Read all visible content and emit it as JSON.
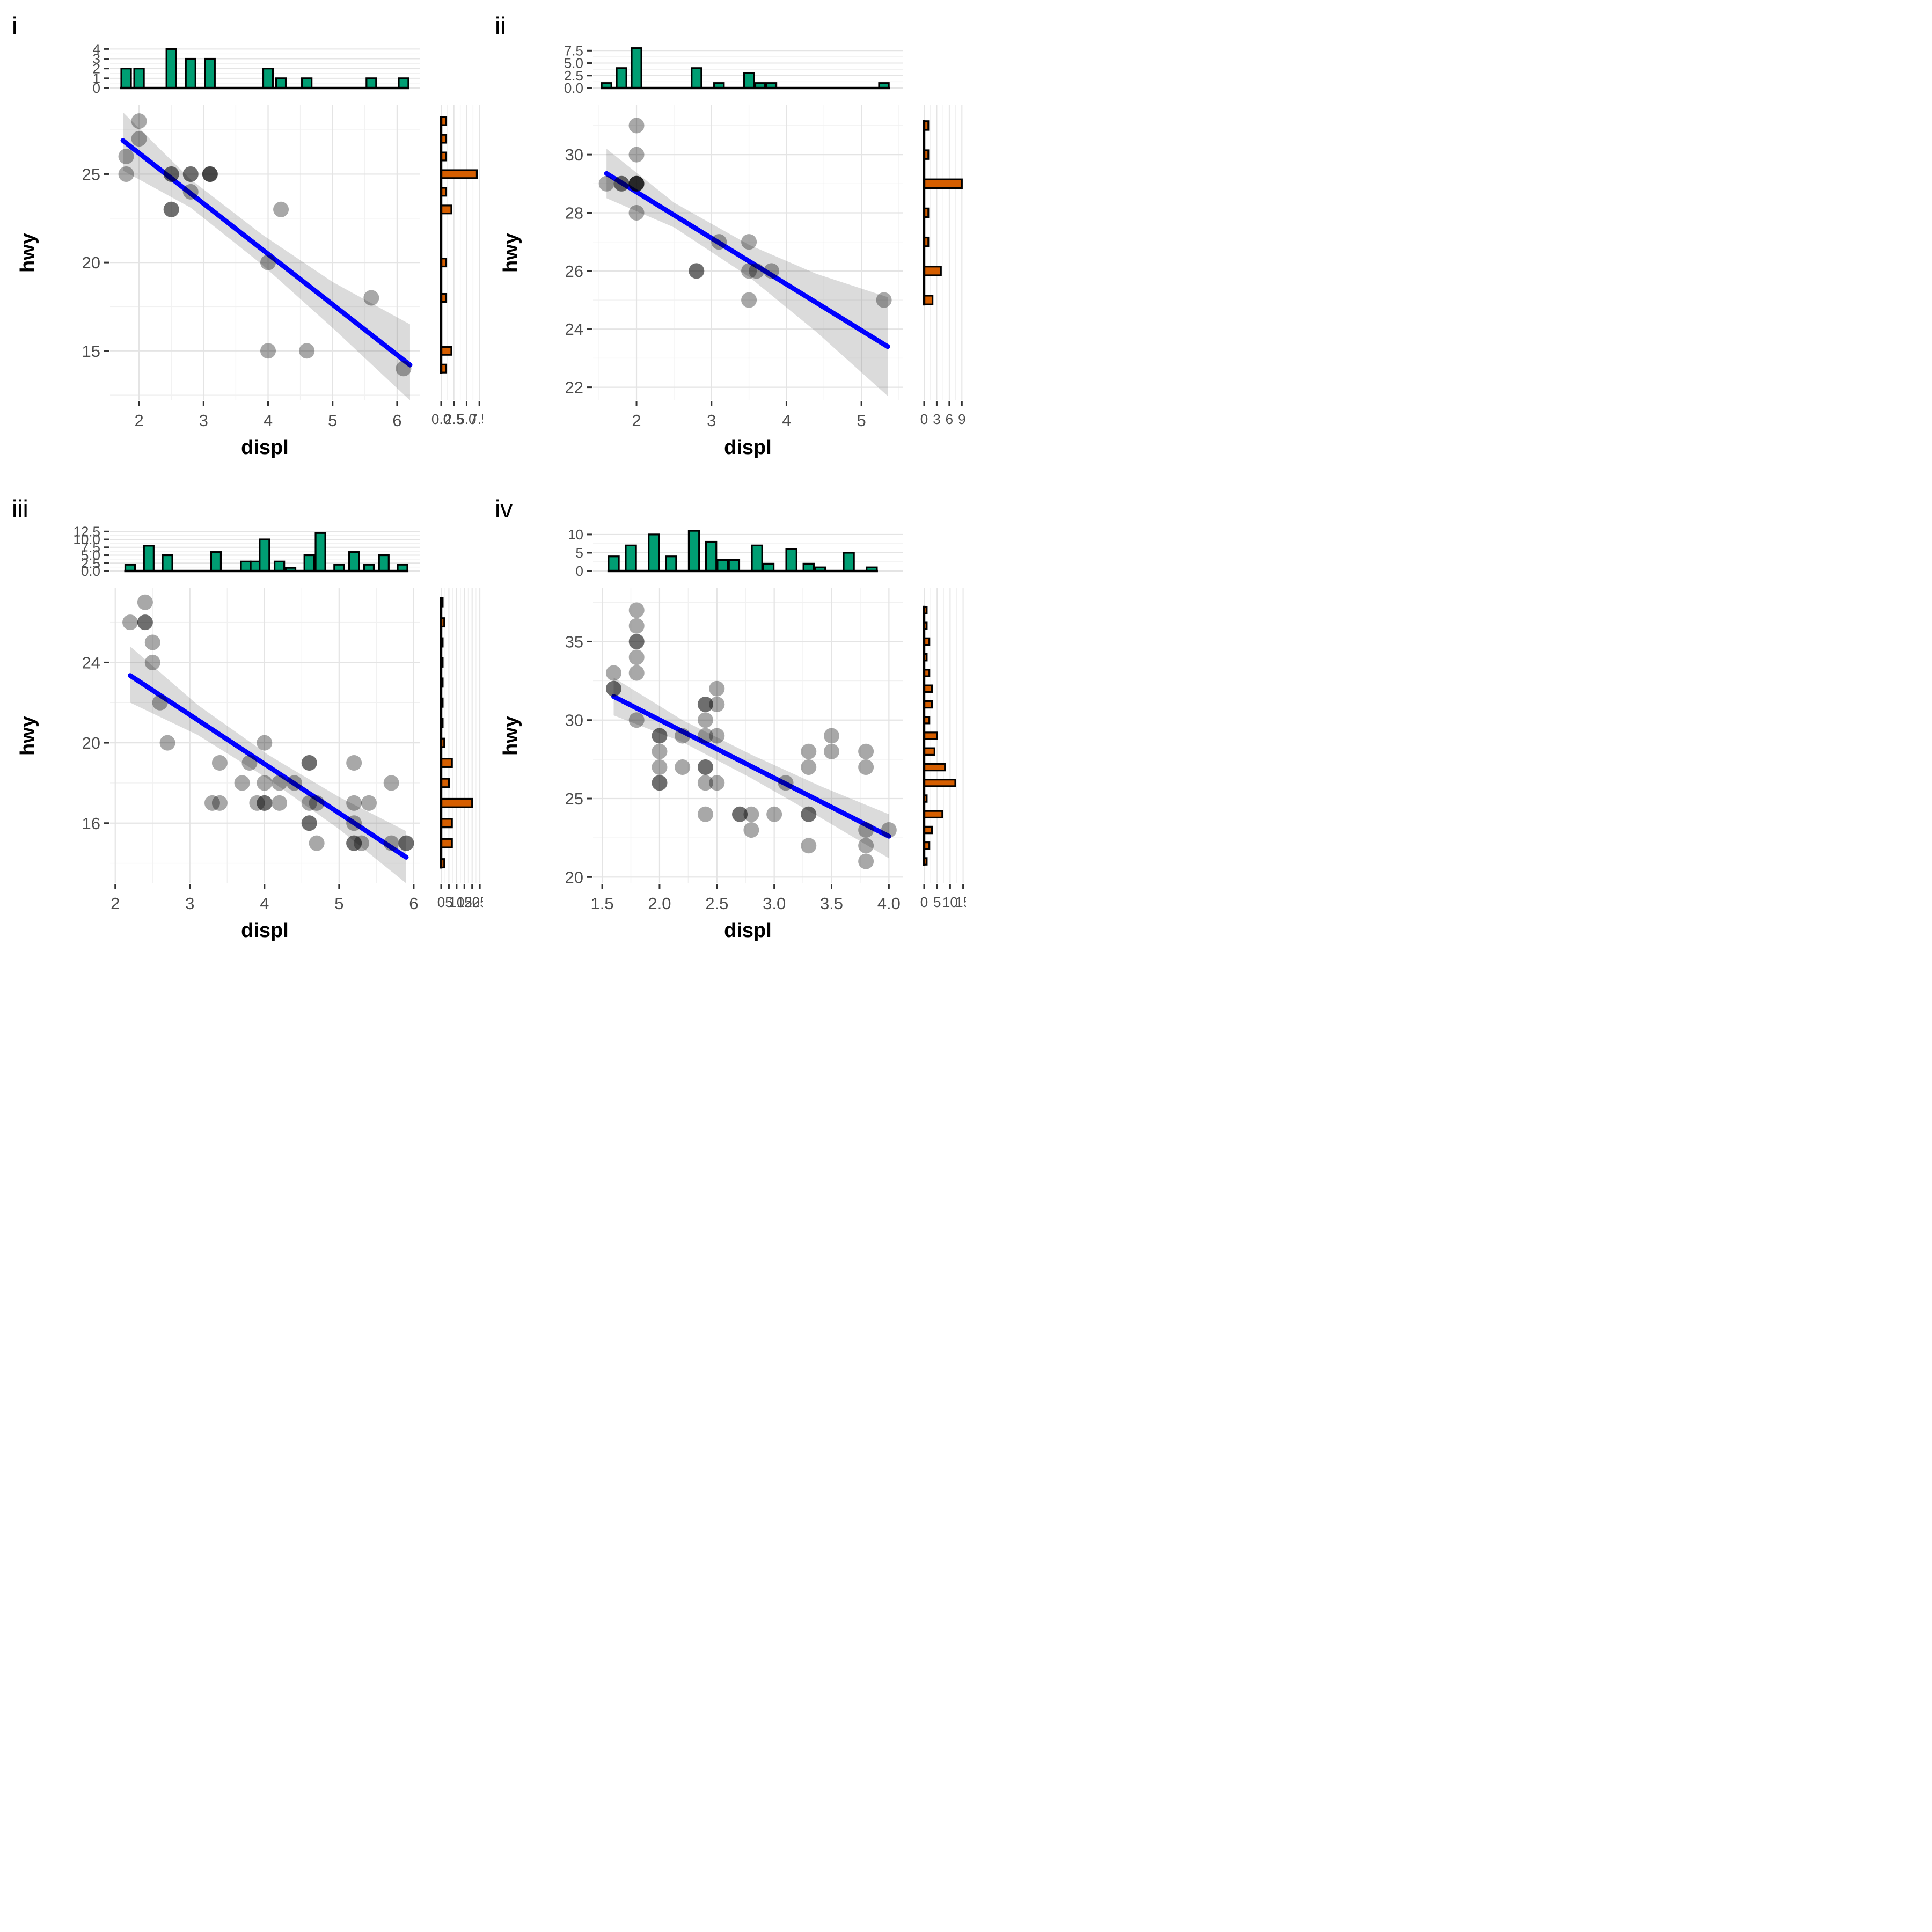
{
  "figure": {
    "type": "scatter-with-marginal-histograms",
    "panel_labels": [
      "i",
      "ii",
      "iii",
      "iv"
    ],
    "x_axis_title": "displ",
    "y_axis_title": "hwy"
  },
  "colors": {
    "top_hist_fill": "#009E73",
    "right_hist_fill": "#D55E00",
    "hist_stroke": "#000000",
    "fit_line": "#0000FF",
    "ci_band": "rgba(110,110,110,0.25)",
    "point": "rgba(0,0,0,0.34)",
    "grid_major": "#E4E4E4",
    "grid_minor": "#F1F1F1",
    "tick_mark": "#333333",
    "tick_label": "#4D4D4D",
    "axis_title": "#000000",
    "panel_letter": "#000000"
  },
  "chart_data": [
    {
      "type": "scatter",
      "label": "i",
      "xlabel": "displ",
      "ylabel": "hwy",
      "x_range": [
        1.55,
        6.35
      ],
      "y_range": [
        12.2,
        28.9
      ],
      "x_ticks": [
        2,
        3,
        4,
        5,
        6
      ],
      "x_tick_labels": [
        "2",
        "3",
        "4",
        "5",
        "6"
      ],
      "y_ticks": [
        15,
        20,
        25
      ],
      "y_tick_labels": [
        "15",
        "20",
        "25"
      ],
      "points": [
        [
          2.0,
          28
        ],
        [
          2.0,
          27
        ],
        [
          1.8,
          26
        ],
        [
          1.8,
          25
        ],
        [
          2.5,
          25
        ],
        [
          2.5,
          25
        ],
        [
          2.8,
          25
        ],
        [
          2.8,
          25
        ],
        [
          3.1,
          25
        ],
        [
          3.1,
          25
        ],
        [
          3.1,
          25
        ],
        [
          2.8,
          24
        ],
        [
          2.5,
          23
        ],
        [
          2.5,
          23
        ],
        [
          4.2,
          23
        ],
        [
          4.0,
          20
        ],
        [
          5.6,
          18
        ],
        [
          4.0,
          15
        ],
        [
          4.6,
          15
        ],
        [
          6.1,
          14
        ]
      ],
      "fit": {
        "x1": 1.75,
        "y1": 26.9,
        "x2": 6.2,
        "y2": 14.2,
        "band": [
          [
            1.75,
            25.2,
            28.5
          ],
          [
            2.8,
            23.1,
            24.7
          ],
          [
            3.9,
            19.9,
            21.6
          ],
          [
            5.0,
            16.3,
            18.9
          ],
          [
            6.2,
            11.9,
            16.5
          ]
        ]
      },
      "top_hist": {
        "axis_ticks": [
          0,
          1,
          2,
          3,
          4
        ],
        "axis_labels": [
          "0",
          "1",
          "2",
          "3",
          "4"
        ],
        "axis_max": 4.35,
        "bin_width": 0.15,
        "bars": [
          [
            1.8,
            2
          ],
          [
            2.0,
            2
          ],
          [
            2.5,
            4
          ],
          [
            2.8,
            3
          ],
          [
            3.1,
            3
          ],
          [
            4.0,
            2
          ],
          [
            4.2,
            1
          ],
          [
            4.6,
            1
          ],
          [
            5.6,
            1
          ],
          [
            6.1,
            1
          ]
        ]
      },
      "right_hist": {
        "axis_ticks": [
          0,
          2.5,
          5,
          7.5
        ],
        "axis_labels": [
          "0.0",
          "2.5",
          "5.0",
          "7.5"
        ],
        "axis_max": 7.9,
        "bin_width": 0.45,
        "bars": [
          [
            28,
            1
          ],
          [
            27,
            1
          ],
          [
            26,
            1
          ],
          [
            25,
            7
          ],
          [
            24,
            1
          ],
          [
            23,
            2
          ],
          [
            20,
            1
          ],
          [
            18,
            1
          ],
          [
            15,
            2
          ],
          [
            14,
            1
          ]
        ]
      }
    },
    {
      "type": "scatter",
      "label": "ii",
      "xlabel": "displ",
      "ylabel": "hwy",
      "x_range": [
        1.42,
        5.55
      ],
      "y_range": [
        21.55,
        31.7
      ],
      "x_ticks": [
        2,
        3,
        4,
        5
      ],
      "x_tick_labels": [
        "2",
        "3",
        "4",
        "5"
      ],
      "y_ticks": [
        22,
        24,
        26,
        28,
        30
      ],
      "y_tick_labels": [
        "22",
        "24",
        "26",
        "28",
        "30"
      ],
      "points": [
        [
          1.6,
          29
        ],
        [
          1.8,
          29
        ],
        [
          1.8,
          29
        ],
        [
          2.0,
          31
        ],
        [
          2.0,
          30
        ],
        [
          2.0,
          29
        ],
        [
          2.0,
          29
        ],
        [
          2.0,
          29
        ],
        [
          2.0,
          29
        ],
        [
          2.0,
          28
        ],
        [
          2.8,
          26
        ],
        [
          2.8,
          26
        ],
        [
          3.1,
          27
        ],
        [
          3.5,
          27
        ],
        [
          3.5,
          26
        ],
        [
          3.6,
          26
        ],
        [
          3.8,
          26
        ],
        [
          3.5,
          25
        ],
        [
          5.3,
          25
        ]
      ],
      "fit": {
        "x1": 1.6,
        "y1": 29.35,
        "x2": 5.35,
        "y2": 23.4,
        "band": [
          [
            1.6,
            28.5,
            30.2
          ],
          [
            2.5,
            27.5,
            28.35
          ],
          [
            3.5,
            25.8,
            26.9
          ],
          [
            4.4,
            23.9,
            25.9
          ],
          [
            5.35,
            21.7,
            25.1
          ]
        ]
      },
      "top_hist": {
        "axis_ticks": [
          0,
          2.5,
          5,
          7.5
        ],
        "axis_labels": [
          "0.0",
          "2.5",
          "5.0",
          "7.5"
        ],
        "axis_max": 8.5,
        "bin_width": 0.13,
        "bars": [
          [
            1.6,
            1
          ],
          [
            1.8,
            4
          ],
          [
            2.0,
            8
          ],
          [
            2.8,
            4
          ],
          [
            3.1,
            1
          ],
          [
            3.5,
            3
          ],
          [
            3.65,
            1
          ],
          [
            3.8,
            1
          ],
          [
            5.3,
            1
          ]
        ]
      },
      "right_hist": {
        "axis_ticks": [
          0,
          3,
          6,
          9
        ],
        "axis_labels": [
          "0",
          "3",
          "6",
          "9"
        ],
        "axis_max": 9.6,
        "bin_width": 0.3,
        "bars": [
          [
            31,
            1
          ],
          [
            30,
            1
          ],
          [
            29,
            9
          ],
          [
            28,
            1
          ],
          [
            27,
            1
          ],
          [
            26,
            4
          ],
          [
            25,
            2
          ]
        ]
      }
    },
    {
      "type": "scatter",
      "label": "iii",
      "xlabel": "displ",
      "ylabel": "hwy",
      "x_range": [
        1.93,
        6.08
      ],
      "y_range": [
        13.0,
        27.7
      ],
      "x_ticks": [
        2,
        3,
        4,
        5,
        6
      ],
      "x_tick_labels": [
        "2",
        "3",
        "4",
        "5",
        "6"
      ],
      "y_ticks": [
        16,
        20,
        24
      ],
      "y_tick_labels": [
        "16",
        "20",
        "24"
      ],
      "points": [
        [
          2.2,
          26
        ],
        [
          2.4,
          27
        ],
        [
          2.4,
          26
        ],
        [
          2.4,
          26
        ],
        [
          2.5,
          25
        ],
        [
          2.5,
          24
        ],
        [
          2.6,
          22
        ],
        [
          2.7,
          20
        ],
        [
          4.0,
          20
        ],
        [
          3.4,
          19
        ],
        [
          3.8,
          19
        ],
        [
          4.6,
          19
        ],
        [
          4.6,
          19
        ],
        [
          5.2,
          19
        ],
        [
          3.7,
          18
        ],
        [
          4.0,
          18
        ],
        [
          4.2,
          18
        ],
        [
          4.4,
          18
        ],
        [
          5.7,
          18
        ],
        [
          3.3,
          17
        ],
        [
          3.4,
          17
        ],
        [
          3.9,
          17
        ],
        [
          4.0,
          17
        ],
        [
          4.0,
          17
        ],
        [
          4.2,
          17
        ],
        [
          4.6,
          17
        ],
        [
          4.7,
          17
        ],
        [
          5.2,
          17
        ],
        [
          5.4,
          17
        ],
        [
          4.6,
          16
        ],
        [
          4.6,
          16
        ],
        [
          5.2,
          16
        ],
        [
          4.7,
          15
        ],
        [
          5.2,
          15
        ],
        [
          5.2,
          15
        ],
        [
          5.3,
          15
        ],
        [
          5.7,
          15
        ],
        [
          5.9,
          15
        ],
        [
          5.9,
          15
        ]
      ],
      "fit": {
        "x1": 2.2,
        "y1": 23.35,
        "x2": 5.9,
        "y2": 14.3,
        "band": [
          [
            2.2,
            22.0,
            24.8
          ],
          [
            3.1,
            20.4,
            21.9
          ],
          [
            4.05,
            18.2,
            19.4
          ],
          [
            5.0,
            15.7,
            17.3
          ],
          [
            5.9,
            13.0,
            15.6
          ]
        ]
      },
      "top_hist": {
        "axis_ticks": [
          0,
          2.5,
          5,
          7.5,
          10,
          12.5
        ],
        "axis_labels": [
          "0.0",
          "2.5",
          "5.0",
          "7.5",
          "10.0",
          "12.5"
        ],
        "axis_max": 13.4,
        "bin_width": 0.13,
        "bars": [
          [
            2.2,
            2
          ],
          [
            2.45,
            8
          ],
          [
            2.7,
            5
          ],
          [
            3.35,
            6
          ],
          [
            3.75,
            3
          ],
          [
            3.88,
            3
          ],
          [
            4.0,
            10
          ],
          [
            4.2,
            3
          ],
          [
            4.35,
            1
          ],
          [
            4.6,
            5
          ],
          [
            4.75,
            12
          ],
          [
            5.0,
            2
          ],
          [
            5.2,
            6
          ],
          [
            5.4,
            2
          ],
          [
            5.6,
            5
          ],
          [
            5.85,
            2
          ]
        ]
      },
      "right_hist": {
        "axis_ticks": [
          0,
          5,
          10,
          15,
          20,
          25
        ],
        "axis_labels": [
          "0",
          "5",
          "10",
          "15",
          "20",
          "25"
        ],
        "axis_max": 26,
        "bin_width": 0.42,
        "bars": [
          [
            27,
            1
          ],
          [
            26,
            2
          ],
          [
            25,
            1
          ],
          [
            24,
            1
          ],
          [
            23,
            1
          ],
          [
            22,
            1
          ],
          [
            21,
            1
          ],
          [
            20,
            2
          ],
          [
            19,
            7
          ],
          [
            18,
            5
          ],
          [
            17,
            20
          ],
          [
            16,
            7
          ],
          [
            15,
            7
          ],
          [
            14,
            2
          ]
        ]
      }
    },
    {
      "type": "scatter",
      "label": "iv",
      "xlabel": "displ",
      "ylabel": "hwy",
      "x_range": [
        1.42,
        4.12
      ],
      "y_range": [
        19.6,
        38.4
      ],
      "x_ticks": [
        1.5,
        2.0,
        2.5,
        3.0,
        3.5,
        4.0
      ],
      "x_tick_labels": [
        "1.5",
        "2.0",
        "2.5",
        "3.0",
        "3.5",
        "4.0"
      ],
      "y_ticks": [
        20,
        25,
        30,
        35
      ],
      "y_tick_labels": [
        "20",
        "25",
        "30",
        "35"
      ],
      "points": [
        [
          1.8,
          37
        ],
        [
          1.8,
          36
        ],
        [
          1.8,
          35
        ],
        [
          1.8,
          35
        ],
        [
          1.8,
          34
        ],
        [
          1.6,
          33
        ],
        [
          1.8,
          33
        ],
        [
          1.6,
          32
        ],
        [
          1.6,
          32
        ],
        [
          2.5,
          32
        ],
        [
          2.4,
          31
        ],
        [
          2.4,
          31
        ],
        [
          2.5,
          31
        ],
        [
          1.8,
          30
        ],
        [
          2.4,
          30
        ],
        [
          2.0,
          29
        ],
        [
          2.0,
          29
        ],
        [
          2.2,
          29
        ],
        [
          2.4,
          29
        ],
        [
          2.5,
          29
        ],
        [
          3.5,
          29
        ],
        [
          2.0,
          28
        ],
        [
          3.3,
          28
        ],
        [
          3.5,
          28
        ],
        [
          3.8,
          28
        ],
        [
          2.0,
          27
        ],
        [
          2.2,
          27
        ],
        [
          2.4,
          27
        ],
        [
          2.4,
          27
        ],
        [
          3.3,
          27
        ],
        [
          3.8,
          27
        ],
        [
          2.0,
          26
        ],
        [
          2.0,
          26
        ],
        [
          2.4,
          26
        ],
        [
          2.5,
          26
        ],
        [
          3.1,
          26
        ],
        [
          2.4,
          24
        ],
        [
          2.7,
          24
        ],
        [
          2.7,
          24
        ],
        [
          2.8,
          24
        ],
        [
          3.0,
          24
        ],
        [
          3.3,
          24
        ],
        [
          3.3,
          24
        ],
        [
          2.8,
          23
        ],
        [
          3.8,
          23
        ],
        [
          4.0,
          23
        ],
        [
          3.3,
          22
        ],
        [
          3.8,
          22
        ],
        [
          3.8,
          21
        ]
      ],
      "fit": {
        "x1": 1.6,
        "y1": 31.5,
        "x2": 4.0,
        "y2": 22.6,
        "band": [
          [
            1.6,
            30.3,
            32.7
          ],
          [
            2.2,
            28.6,
            30.0
          ],
          [
            2.8,
            26.3,
            27.8
          ],
          [
            3.4,
            23.8,
            25.8
          ],
          [
            4.0,
            21.2,
            24.0
          ]
        ]
      },
      "top_hist": {
        "axis_ticks": [
          0,
          5,
          10
        ],
        "axis_labels": [
          "0",
          "5",
          "10"
        ],
        "axis_max": 11.6,
        "bin_width": 0.09,
        "bars": [
          [
            1.6,
            4
          ],
          [
            1.75,
            7
          ],
          [
            1.95,
            10
          ],
          [
            2.1,
            4
          ],
          [
            2.3,
            11
          ],
          [
            2.45,
            8
          ],
          [
            2.55,
            3
          ],
          [
            2.65,
            3
          ],
          [
            2.85,
            7
          ],
          [
            2.95,
            2
          ],
          [
            3.15,
            6
          ],
          [
            3.3,
            2
          ],
          [
            3.4,
            1
          ],
          [
            3.65,
            5
          ],
          [
            3.85,
            1
          ]
        ]
      },
      "right_hist": {
        "axis_ticks": [
          0,
          5,
          10,
          15
        ],
        "axis_labels": [
          "0",
          "5",
          "10",
          "15"
        ],
        "axis_max": 15.5,
        "bin_width": 0.42,
        "bars": [
          [
            37,
            1
          ],
          [
            36,
            1
          ],
          [
            35,
            2
          ],
          [
            34,
            1
          ],
          [
            33,
            2
          ],
          [
            32,
            3
          ],
          [
            31,
            3
          ],
          [
            30,
            2
          ],
          [
            29,
            5
          ],
          [
            28,
            4
          ],
          [
            27,
            8
          ],
          [
            26,
            12
          ],
          [
            25,
            1
          ],
          [
            24,
            7
          ],
          [
            23,
            3
          ],
          [
            22,
            2
          ],
          [
            21,
            1
          ]
        ]
      }
    }
  ]
}
